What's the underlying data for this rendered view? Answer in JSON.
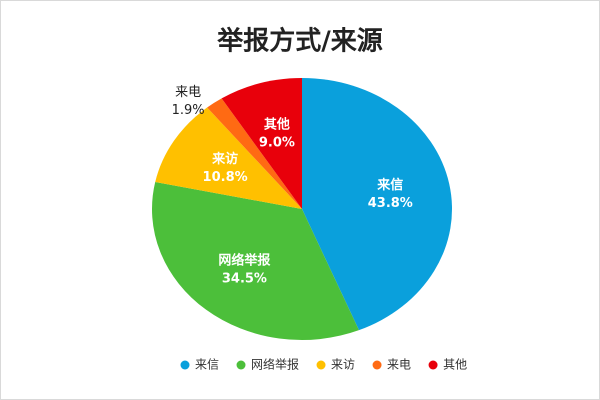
{
  "chart_data": {
    "type": "pie",
    "title": "举报方式/来源",
    "categories": [
      "来信",
      "网络举报",
      "来访",
      "来电",
      "其他"
    ],
    "values": [
      43.8,
      34.5,
      10.8,
      1.9,
      9.0
    ],
    "value_labels": [
      "43.8%",
      "34.5%",
      "10.8%",
      "1.9%",
      "9.0%"
    ],
    "colors": [
      "#0aa0dc",
      "#4cbf3a",
      "#ffc000",
      "#ff6a13",
      "#e8000b"
    ],
    "legend": "bottom"
  }
}
